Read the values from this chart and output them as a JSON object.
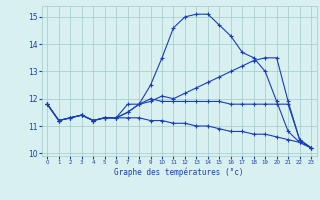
{
  "title": "Graphe des températures (°c)",
  "x": [
    0,
    1,
    2,
    3,
    4,
    5,
    6,
    7,
    8,
    9,
    10,
    11,
    12,
    13,
    14,
    15,
    16,
    17,
    18,
    19,
    20,
    21,
    22,
    23
  ],
  "line1": [
    11.8,
    11.2,
    11.3,
    11.4,
    11.2,
    11.3,
    11.3,
    11.8,
    11.8,
    12.5,
    13.5,
    14.6,
    15.0,
    15.1,
    15.1,
    14.7,
    14.3,
    13.7,
    13.5,
    13.0,
    11.9,
    10.8,
    10.4,
    10.2
  ],
  "line2": [
    11.8,
    11.2,
    11.3,
    11.4,
    11.2,
    11.3,
    11.3,
    11.5,
    11.8,
    11.9,
    12.1,
    12.0,
    12.2,
    12.4,
    12.6,
    12.8,
    13.0,
    13.2,
    13.4,
    13.5,
    13.5,
    11.9,
    10.5,
    10.2
  ],
  "line3": [
    11.8,
    11.2,
    11.3,
    11.4,
    11.2,
    11.3,
    11.3,
    11.3,
    11.3,
    11.2,
    11.2,
    11.1,
    11.1,
    11.0,
    11.0,
    10.9,
    10.8,
    10.8,
    10.7,
    10.7,
    10.6,
    10.5,
    10.4,
    10.2
  ],
  "line4": [
    11.8,
    11.2,
    11.3,
    11.4,
    11.2,
    11.3,
    11.3,
    11.5,
    11.8,
    12.0,
    11.9,
    11.9,
    11.9,
    11.9,
    11.9,
    11.9,
    11.8,
    11.8,
    11.8,
    11.8,
    11.8,
    11.8,
    10.5,
    10.2
  ],
  "line_color": "#1a3eb8",
  "bg_color": "#d8f0f0",
  "grid_color": "#a0c8c8",
  "ylim": [
    9.9,
    15.4
  ],
  "yticks": [
    10,
    11,
    12,
    13,
    14,
    15
  ],
  "xticks": [
    0,
    1,
    2,
    3,
    4,
    5,
    6,
    7,
    8,
    9,
    10,
    11,
    12,
    13,
    14,
    15,
    16,
    17,
    18,
    19,
    20,
    21,
    22,
    23
  ]
}
